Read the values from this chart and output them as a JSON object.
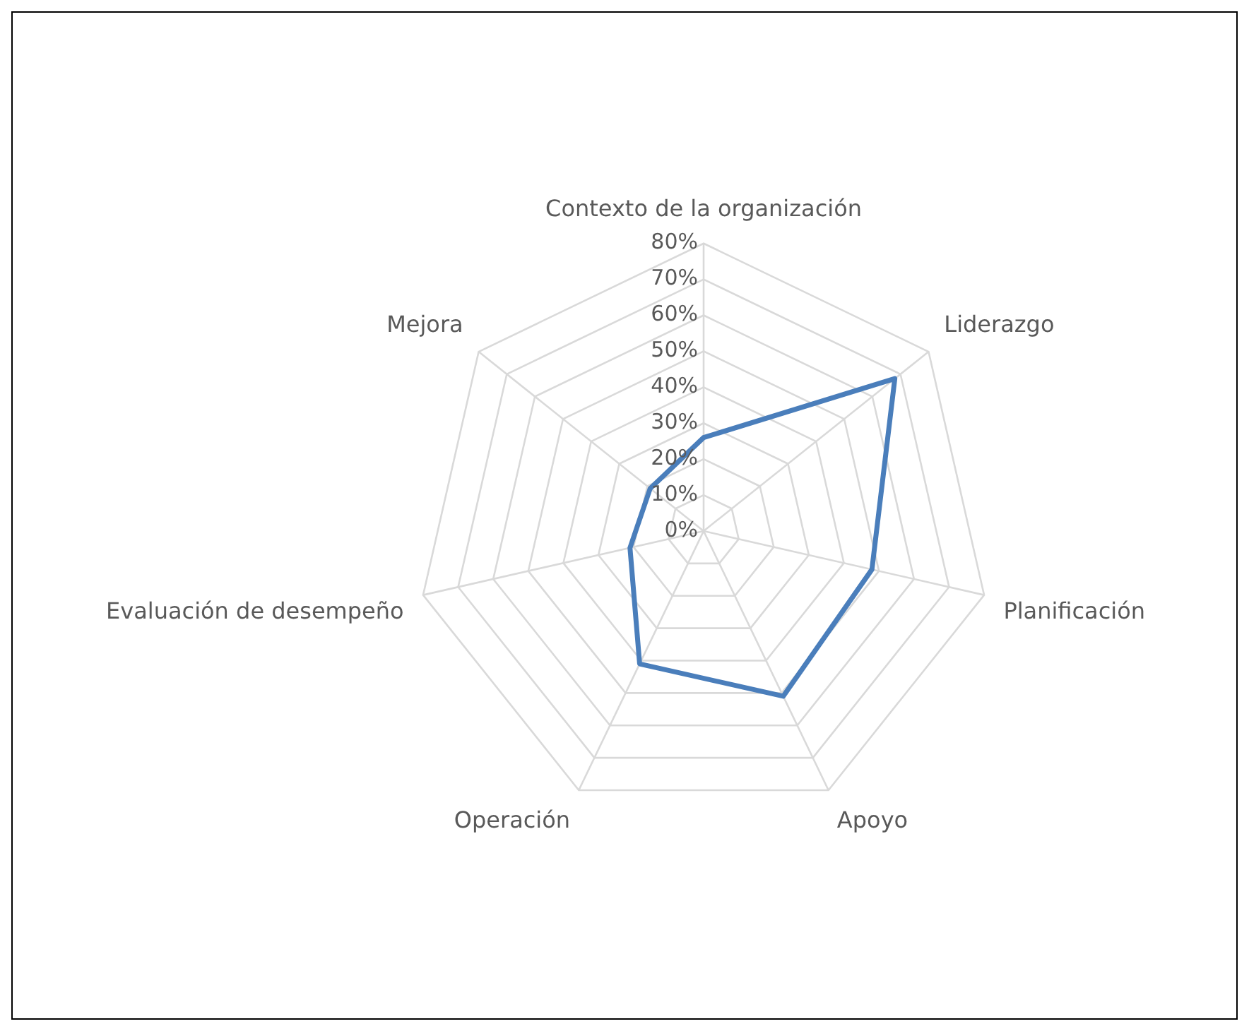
{
  "chart_data": {
    "type": "radar",
    "categories": [
      "Contexto de la organización",
      "Liderazgo",
      "Planificación",
      "Apoyo",
      "Operación",
      "Evaluación de desempeño",
      "Mejora"
    ],
    "series": [
      {
        "color": "#4a7ebb",
        "values": [
          26,
          68,
          48,
          51,
          41,
          21,
          19
        ]
      }
    ],
    "ylim": [
      0,
      80
    ],
    "yticks": [
      {
        "value": 0,
        "label": "0%"
      },
      {
        "value": 10,
        "label": "10%"
      },
      {
        "value": 20,
        "label": "20%"
      },
      {
        "value": 30,
        "label": "30%"
      },
      {
        "value": 40,
        "label": "40%"
      },
      {
        "value": 50,
        "label": "50%"
      },
      {
        "value": 60,
        "label": "60%"
      },
      {
        "value": 70,
        "label": "70%"
      },
      {
        "value": 80,
        "label": "80%"
      }
    ],
    "grid": true,
    "legend": false,
    "marker": "none",
    "line_style": "solid"
  }
}
